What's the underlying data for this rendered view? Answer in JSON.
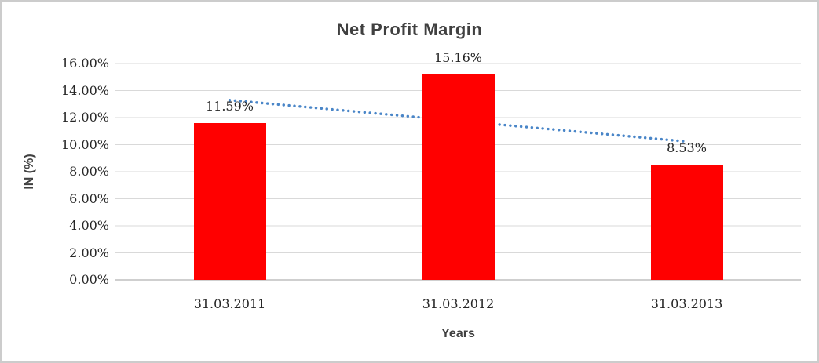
{
  "window": {
    "background": "#ffffff",
    "border_color": "#cccccc"
  },
  "chart_data": {
    "type": "bar",
    "title": "Net Profit Margin",
    "xlabel": "Years",
    "ylabel": "IN (%)",
    "categories": [
      "31.03.2011",
      "31.03.2012",
      "31.03.2013"
    ],
    "series": [
      {
        "name": "Net Profit Margin",
        "values": [
          11.59,
          15.16,
          8.53
        ],
        "color": "#ff0000"
      }
    ],
    "data_labels": [
      "11.59%",
      "15.16%",
      "8.53%"
    ],
    "ylim": [
      0,
      16
    ],
    "ytick_step": 2,
    "ytick_labels": [
      "0.00%",
      "2.00%",
      "4.00%",
      "6.00%",
      "8.00%",
      "10.00%",
      "12.00%",
      "14.00%",
      "16.00%"
    ],
    "grid": true,
    "legend": "none",
    "gridline_color": "#d9d9d9",
    "axis_line_color": "#bfbfbf",
    "tick_text_color": "#262626",
    "heading_text_color": "#404040",
    "trendline": {
      "type": "linear",
      "style": "dotted",
      "color": "#4a86c8",
      "start_value": 13.29,
      "end_value": 10.23
    }
  }
}
